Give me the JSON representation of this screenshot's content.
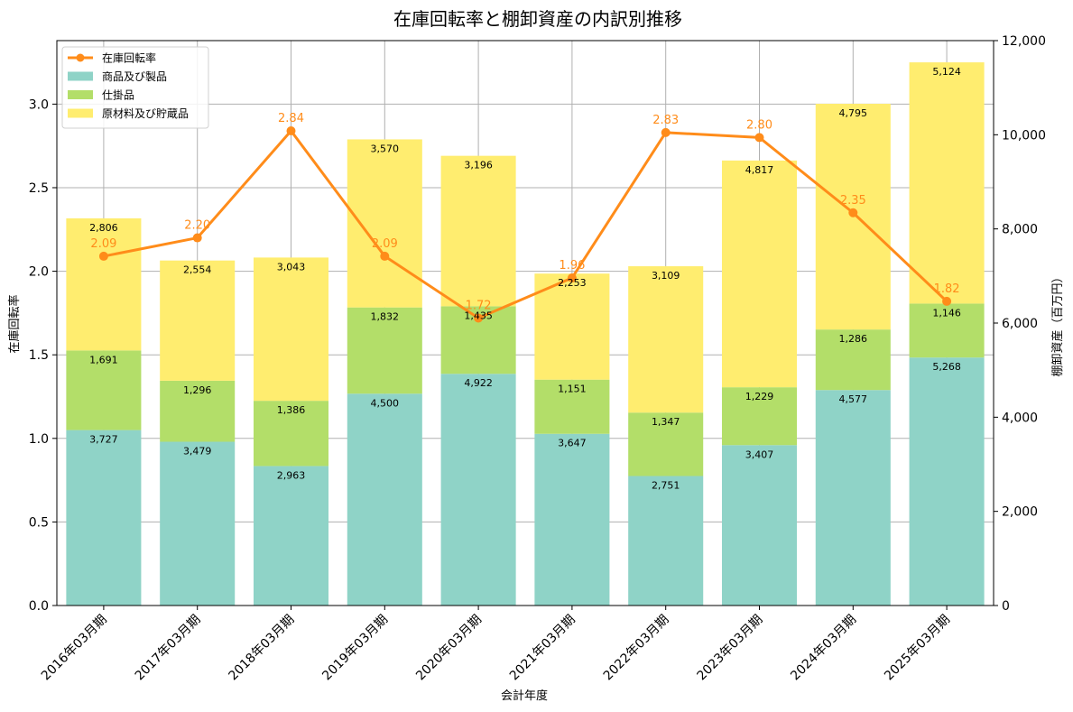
{
  "chart_data": {
    "type": "bar",
    "title": "在庫回転率と棚卸資産の内訳別推移",
    "xlabel": "会計年度",
    "ylabel_left": "在庫回転率",
    "ylabel_right": "棚卸資産（百万円）",
    "categories": [
      "2016年03月期",
      "2017年03月期",
      "2018年03月期",
      "2019年03月期",
      "2020年03月期",
      "2021年03月期",
      "2022年03月期",
      "2023年03月期",
      "2024年03月期",
      "2025年03月期"
    ],
    "series": [
      {
        "name": "商品及び製品",
        "chart": "stacked-bar",
        "axis": "right",
        "color": "#8fd3c7",
        "values": [
          3727,
          3479,
          2963,
          4500,
          4922,
          3647,
          2751,
          3407,
          4577,
          5268
        ],
        "labels": [
          "3,727",
          "3,479",
          "2,963",
          "4,500",
          "4,922",
          "3,647",
          "2,751",
          "3,407",
          "4,577",
          "5,268"
        ]
      },
      {
        "name": "仕掛品",
        "chart": "stacked-bar",
        "axis": "right",
        "color": "#b3de69",
        "values": [
          1691,
          1296,
          1386,
          1832,
          1435,
          1151,
          1347,
          1229,
          1286,
          1146
        ],
        "labels": [
          "1,691",
          "1,296",
          "1,386",
          "1,832",
          "1,435",
          "1,151",
          "1,347",
          "1,229",
          "1,286",
          "1,146"
        ]
      },
      {
        "name": "原材料及び貯蔵品",
        "chart": "stacked-bar",
        "axis": "right",
        "color": "#ffed6f",
        "values": [
          2806,
          2554,
          3043,
          3570,
          3196,
          2253,
          3109,
          4817,
          4795,
          5124
        ],
        "labels": [
          "2,806",
          "2,554",
          "3,043",
          "3,570",
          "3,196",
          "2,253",
          "3,109",
          "4,817",
          "4,795",
          "5,124"
        ]
      },
      {
        "name": "在庫回転率",
        "chart": "line",
        "axis": "left",
        "color": "#ff8c1a",
        "values": [
          2.09,
          2.2,
          2.84,
          2.09,
          1.72,
          1.96,
          2.83,
          2.8,
          2.35,
          1.82
        ],
        "labels": [
          "2.09",
          "2.20",
          "2.84",
          "2.09",
          "1.72",
          "1.96",
          "2.83",
          "2.80",
          "2.35",
          "1.82"
        ]
      }
    ],
    "ylim_left": [
      0,
      3.38
    ],
    "ylim_right": [
      0,
      12000
    ],
    "yticks_left": [
      "0.0",
      "0.5",
      "1.0",
      "1.5",
      "2.0",
      "2.5",
      "3.0"
    ],
    "yticks_right": [
      "0",
      "2,000",
      "4,000",
      "6,000",
      "8,000",
      "10,000",
      "12,000"
    ],
    "grid": true,
    "legend_position": "top-left"
  }
}
